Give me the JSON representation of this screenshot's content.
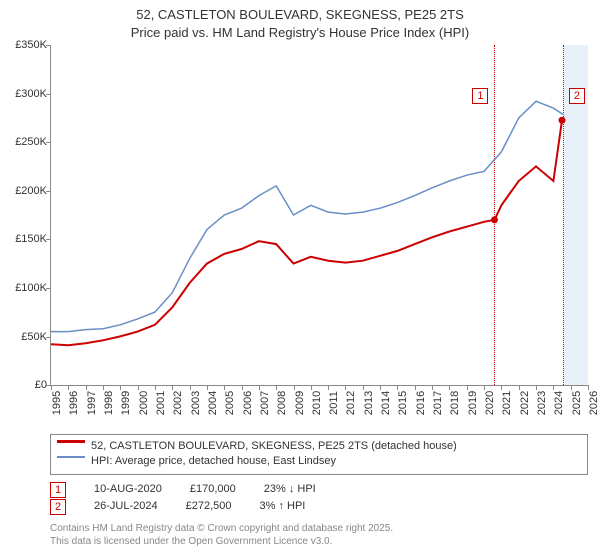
{
  "title": {
    "line1": "52, CASTLETON BOULEVARD, SKEGNESS, PE25 2TS",
    "line2": "Price paid vs. HM Land Registry's House Price Index (HPI)",
    "fontsize": 13
  },
  "chart": {
    "type": "line",
    "background_color": "#ffffff",
    "axis_color": "#888888",
    "ylim": [
      0,
      350000
    ],
    "ytick_step": 50000,
    "yticks": [
      "£0",
      "£50K",
      "£100K",
      "£150K",
      "£200K",
      "£250K",
      "£300K",
      "£350K"
    ],
    "xlim": [
      1995,
      2026
    ],
    "xticks": [
      1995,
      1996,
      1997,
      1998,
      1999,
      2000,
      2001,
      2002,
      2003,
      2004,
      2005,
      2006,
      2007,
      2008,
      2009,
      2010,
      2011,
      2012,
      2013,
      2014,
      2015,
      2016,
      2017,
      2018,
      2019,
      2020,
      2021,
      2022,
      2023,
      2024,
      2025,
      2026
    ],
    "series": [
      {
        "name": "price_paid",
        "label": "52, CASTLETON BOULEVARD, SKEGNESS, PE25 2TS (detached house)",
        "color": "#cc0000",
        "line_width": 2.0,
        "points": [
          [
            1995,
            42000
          ],
          [
            1996,
            41000
          ],
          [
            1997,
            43000
          ],
          [
            1998,
            46000
          ],
          [
            1999,
            50000
          ],
          [
            2000,
            55000
          ],
          [
            2001,
            62000
          ],
          [
            2002,
            80000
          ],
          [
            2003,
            105000
          ],
          [
            2004,
            125000
          ],
          [
            2005,
            135000
          ],
          [
            2006,
            140000
          ],
          [
            2007,
            148000
          ],
          [
            2008,
            145000
          ],
          [
            2009,
            125000
          ],
          [
            2010,
            132000
          ],
          [
            2011,
            128000
          ],
          [
            2012,
            126000
          ],
          [
            2013,
            128000
          ],
          [
            2014,
            133000
          ],
          [
            2015,
            138000
          ],
          [
            2016,
            145000
          ],
          [
            2017,
            152000
          ],
          [
            2018,
            158000
          ],
          [
            2019,
            163000
          ],
          [
            2020,
            168000
          ],
          [
            2020.6,
            170000
          ],
          [
            2021,
            185000
          ],
          [
            2022,
            210000
          ],
          [
            2023,
            225000
          ],
          [
            2024,
            210000
          ],
          [
            2024.5,
            272500
          ]
        ]
      },
      {
        "name": "hpi",
        "label": "HPI: Average price, detached house, East Lindsey",
        "color": "#6a8fc6",
        "line_width": 1.5,
        "points": [
          [
            1995,
            55000
          ],
          [
            1996,
            55000
          ],
          [
            1997,
            57000
          ],
          [
            1998,
            58000
          ],
          [
            1999,
            62000
          ],
          [
            2000,
            68000
          ],
          [
            2001,
            75000
          ],
          [
            2002,
            95000
          ],
          [
            2003,
            130000
          ],
          [
            2004,
            160000
          ],
          [
            2005,
            175000
          ],
          [
            2006,
            182000
          ],
          [
            2007,
            195000
          ],
          [
            2008,
            205000
          ],
          [
            2009,
            175000
          ],
          [
            2010,
            185000
          ],
          [
            2011,
            178000
          ],
          [
            2012,
            176000
          ],
          [
            2013,
            178000
          ],
          [
            2014,
            182000
          ],
          [
            2015,
            188000
          ],
          [
            2016,
            195000
          ],
          [
            2017,
            203000
          ],
          [
            2018,
            210000
          ],
          [
            2019,
            216000
          ],
          [
            2020,
            220000
          ],
          [
            2021,
            240000
          ],
          [
            2022,
            275000
          ],
          [
            2023,
            292000
          ],
          [
            2024,
            285000
          ],
          [
            2024.6,
            278000
          ]
        ]
      }
    ],
    "markers": [
      {
        "id": "1",
        "year": 2020.6,
        "y": 120000,
        "date": "10-AUG-2020",
        "price": "£170,000",
        "delta": "23% ↓ HPI"
      },
      {
        "id": "2",
        "year": 2024.55,
        "y": 120000,
        "date": "26-JUL-2024",
        "price": "£272,500",
        "delta": "3% ↑ HPI"
      }
    ],
    "shade": {
      "from": 2024.6,
      "to": 2026,
      "color": "#d6e4f5"
    },
    "marker_box_color": "#cc0000",
    "label_fontsize": 11
  },
  "legend": {
    "series1": "52, CASTLETON BOULEVARD, SKEGNESS, PE25 2TS (detached house)",
    "series2": "HPI: Average price, detached house, East Lindsey"
  },
  "credit": {
    "line1": "Contains HM Land Registry data © Crown copyright and database right 2025.",
    "line2": "This data is licensed under the Open Government Licence v3.0."
  }
}
